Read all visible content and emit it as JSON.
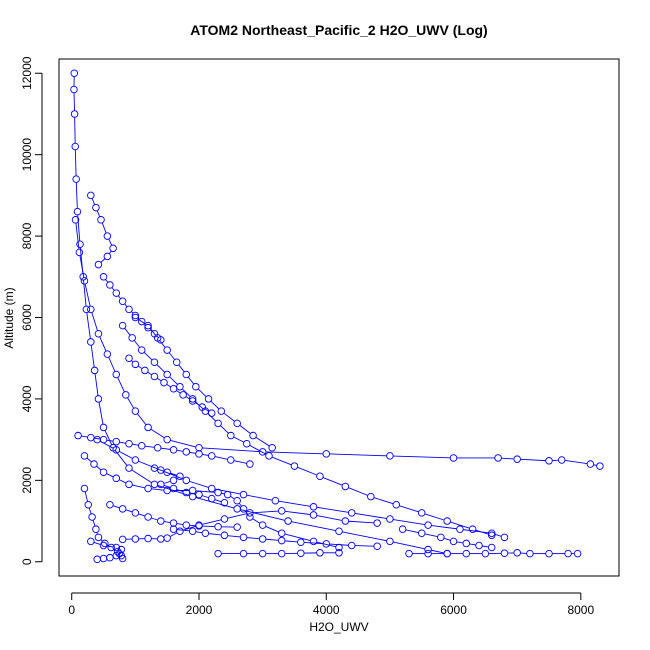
{
  "chart_data": {
    "type": "scatter",
    "title": "ATOM2 Northeast_Pacific_2 H2O_UWV (Log)",
    "xlabel": "H2O_UWV",
    "ylabel": "Altitude (m)",
    "xlim": [
      -200,
      8600
    ],
    "ylim": [
      -350,
      12350
    ],
    "xticks": [
      0,
      2000,
      4000,
      6000,
      8000
    ],
    "yticks": [
      0,
      2000,
      4000,
      6000,
      8000,
      10000,
      12000
    ],
    "grid": false,
    "point_color": "#0000ff",
    "line_color": "#0000ff",
    "series": [
      {
        "values": [
          [
            40,
            12000
          ],
          [
            35,
            11600
          ],
          [
            45,
            11000
          ],
          [
            55,
            10200
          ],
          [
            70,
            9400
          ],
          [
            90,
            8600
          ],
          [
            130,
            7800
          ],
          [
            180,
            7000
          ],
          [
            230,
            6200
          ],
          [
            300,
            5400
          ],
          [
            360,
            4700
          ],
          [
            420,
            4000
          ],
          [
            500,
            3300
          ],
          [
            650,
            2800
          ],
          [
            900,
            2300
          ],
          [
            1300,
            1900
          ],
          [
            1900,
            1600
          ],
          [
            2600,
            1300
          ],
          [
            3400,
            1000
          ],
          [
            4200,
            750
          ],
          [
            5000,
            500
          ],
          [
            5600,
            300
          ],
          [
            5900,
            200
          ]
        ]
      },
      {
        "values": [
          [
            60,
            8400
          ],
          [
            120,
            7600
          ],
          [
            200,
            6900
          ],
          [
            300,
            6200
          ],
          [
            420,
            5600
          ],
          [
            560,
            5100
          ],
          [
            700,
            4600
          ],
          [
            850,
            4100
          ],
          [
            1000,
            3700
          ],
          [
            1200,
            3300
          ],
          [
            1500,
            3000
          ],
          [
            2000,
            2800
          ],
          [
            3000,
            2700
          ],
          [
            4000,
            2650
          ],
          [
            5000,
            2600
          ],
          [
            6000,
            2550
          ],
          [
            6700,
            2550
          ],
          [
            7000,
            2520
          ],
          [
            7500,
            2480
          ],
          [
            7700,
            2500
          ],
          [
            8150,
            2400
          ],
          [
            8300,
            2350
          ]
        ]
      },
      {
        "values": [
          [
            300,
            9000
          ],
          [
            380,
            8700
          ],
          [
            460,
            8400
          ],
          [
            560,
            8000
          ],
          [
            650,
            7700
          ],
          [
            560,
            7500
          ],
          [
            420,
            7300
          ]
        ]
      },
      {
        "values": [
          [
            800,
            5800
          ],
          [
            950,
            5500
          ],
          [
            1100,
            5200
          ],
          [
            1300,
            4900
          ],
          [
            1500,
            4600
          ],
          [
            1700,
            4300
          ],
          [
            1900,
            4000
          ],
          [
            2100,
            3700
          ],
          [
            2300,
            3400
          ],
          [
            2500,
            3100
          ],
          [
            2750,
            2900
          ],
          [
            3100,
            2600
          ],
          [
            3500,
            2350
          ],
          [
            3900,
            2100
          ],
          [
            4300,
            1850
          ],
          [
            4700,
            1600
          ],
          [
            5100,
            1400
          ],
          [
            5500,
            1200
          ],
          [
            5900,
            1000
          ],
          [
            6300,
            800
          ],
          [
            6600,
            650
          ]
        ]
      },
      {
        "values": [
          [
            1000,
            6000
          ],
          [
            1200,
            5800
          ],
          [
            1350,
            5500
          ],
          [
            1500,
            5200
          ],
          [
            1650,
            4900
          ],
          [
            1800,
            4600
          ],
          [
            1950,
            4300
          ],
          [
            2150,
            4000
          ],
          [
            2350,
            3700
          ],
          [
            2600,
            3400
          ],
          [
            2850,
            3100
          ],
          [
            3150,
            2800
          ]
        ]
      },
      {
        "values": [
          [
            400,
            3000
          ],
          [
            700,
            2750
          ],
          [
            1000,
            2500
          ],
          [
            1400,
            2250
          ],
          [
            1800,
            2000
          ],
          [
            2200,
            1800
          ],
          [
            2700,
            1650
          ],
          [
            3200,
            1500
          ],
          [
            3800,
            1350
          ],
          [
            4400,
            1200
          ],
          [
            5000,
            1050
          ],
          [
            5600,
            900
          ],
          [
            6100,
            800
          ],
          [
            6600,
            700
          ],
          [
            6800,
            600
          ]
        ]
      },
      {
        "values": [
          [
            200,
            2600
          ],
          [
            350,
            2400
          ],
          [
            500,
            2200
          ],
          [
            700,
            2050
          ],
          [
            900,
            1900
          ],
          [
            1200,
            1800
          ],
          [
            1500,
            1750
          ],
          [
            1900,
            1750
          ],
          [
            2300,
            1700
          ],
          [
            2450,
            1650
          ],
          [
            2600,
            1500
          ],
          [
            2700,
            1300
          ],
          [
            2800,
            1100
          ],
          [
            3000,
            900
          ],
          [
            3300,
            700
          ],
          [
            3800,
            500
          ],
          [
            4200,
            350
          ]
        ]
      },
      {
        "values": [
          [
            300,
            500
          ],
          [
            500,
            400
          ],
          [
            700,
            350
          ],
          [
            780,
            300
          ],
          [
            750,
            200
          ],
          [
            700,
            150
          ],
          [
            600,
            100
          ],
          [
            500,
            80
          ],
          [
            400,
            60
          ]
        ]
      },
      {
        "values": [
          [
            800,
            550
          ],
          [
            1000,
            560
          ],
          [
            1200,
            570
          ],
          [
            1400,
            560
          ],
          [
            1500,
            580
          ],
          [
            1700,
            750
          ],
          [
            2000,
            900
          ],
          [
            2400,
            1050
          ],
          [
            2800,
            1200
          ],
          [
            3300,
            1250
          ],
          [
            3800,
            1150
          ],
          [
            4300,
            1000
          ],
          [
            4800,
            950
          ]
        ]
      },
      {
        "values": [
          [
            200,
            1800
          ],
          [
            260,
            1400
          ],
          [
            320,
            1100
          ],
          [
            380,
            800
          ],
          [
            420,
            600
          ],
          [
            520,
            450
          ],
          [
            620,
            350
          ],
          [
            720,
            250
          ],
          [
            780,
            150
          ],
          [
            800,
            80
          ]
        ]
      },
      {
        "values": [
          [
            2300,
            200
          ],
          [
            2700,
            200
          ],
          [
            3000,
            200
          ],
          [
            3300,
            200
          ],
          [
            3600,
            210
          ],
          [
            3900,
            220
          ],
          [
            4200,
            220
          ]
        ]
      },
      {
        "values": [
          [
            5300,
            200
          ],
          [
            5600,
            200
          ],
          [
            5900,
            200
          ],
          [
            6200,
            200
          ],
          [
            6500,
            200
          ],
          [
            6800,
            210
          ],
          [
            7000,
            220
          ],
          [
            7200,
            200
          ],
          [
            7500,
            200
          ],
          [
            7800,
            200
          ],
          [
            7950,
            200
          ]
        ]
      },
      {
        "values": [
          [
            1300,
            2300
          ],
          [
            1500,
            2200
          ],
          [
            1700,
            2100
          ],
          [
            1600,
            2000
          ],
          [
            1400,
            1900
          ],
          [
            1600,
            1800
          ],
          [
            1800,
            1700
          ],
          [
            2000,
            1650
          ],
          [
            2200,
            1550
          ],
          [
            2400,
            1450
          ]
        ]
      },
      {
        "values": [
          [
            100,
            3100
          ],
          [
            300,
            3050
          ],
          [
            500,
            3000
          ],
          [
            700,
            2950
          ],
          [
            900,
            2900
          ],
          [
            1100,
            2850
          ],
          [
            1350,
            2800
          ],
          [
            1600,
            2750
          ],
          [
            1800,
            2700
          ],
          [
            2000,
            2650
          ],
          [
            2200,
            2600
          ],
          [
            2500,
            2500
          ],
          [
            2800,
            2400
          ]
        ]
      },
      {
        "values": [
          [
            900,
            5000
          ],
          [
            1000,
            4850
          ],
          [
            1150,
            4700
          ],
          [
            1300,
            4550
          ],
          [
            1450,
            4400
          ],
          [
            1600,
            4250
          ],
          [
            1750,
            4100
          ],
          [
            1900,
            3950
          ],
          [
            2050,
            3800
          ],
          [
            2200,
            3650
          ]
        ]
      },
      {
        "values": [
          [
            500,
            7000
          ],
          [
            600,
            6800
          ],
          [
            700,
            6600
          ],
          [
            800,
            6400
          ],
          [
            900,
            6200
          ],
          [
            1000,
            6050
          ],
          [
            1100,
            5900
          ],
          [
            1200,
            5750
          ],
          [
            1300,
            5600
          ],
          [
            1400,
            5450
          ]
        ]
      },
      {
        "values": [
          [
            1600,
            800
          ],
          [
            1900,
            750
          ],
          [
            2100,
            700
          ],
          [
            2400,
            650
          ],
          [
            2700,
            600
          ],
          [
            3000,
            560
          ],
          [
            3300,
            520
          ],
          [
            3600,
            480
          ],
          [
            4000,
            440
          ],
          [
            4400,
            400
          ],
          [
            4800,
            380
          ]
        ]
      },
      {
        "values": [
          [
            5200,
            800
          ],
          [
            5500,
            700
          ],
          [
            5800,
            600
          ],
          [
            6000,
            500
          ],
          [
            6200,
            450
          ],
          [
            6400,
            400
          ],
          [
            6600,
            350
          ]
        ]
      },
      {
        "values": [
          [
            600,
            1400
          ],
          [
            800,
            1300
          ],
          [
            1000,
            1200
          ],
          [
            1200,
            1100
          ],
          [
            1400,
            1000
          ],
          [
            1600,
            950
          ],
          [
            1800,
            900
          ],
          [
            2000,
            880
          ],
          [
            2300,
            860
          ],
          [
            2600,
            850
          ]
        ]
      }
    ]
  }
}
